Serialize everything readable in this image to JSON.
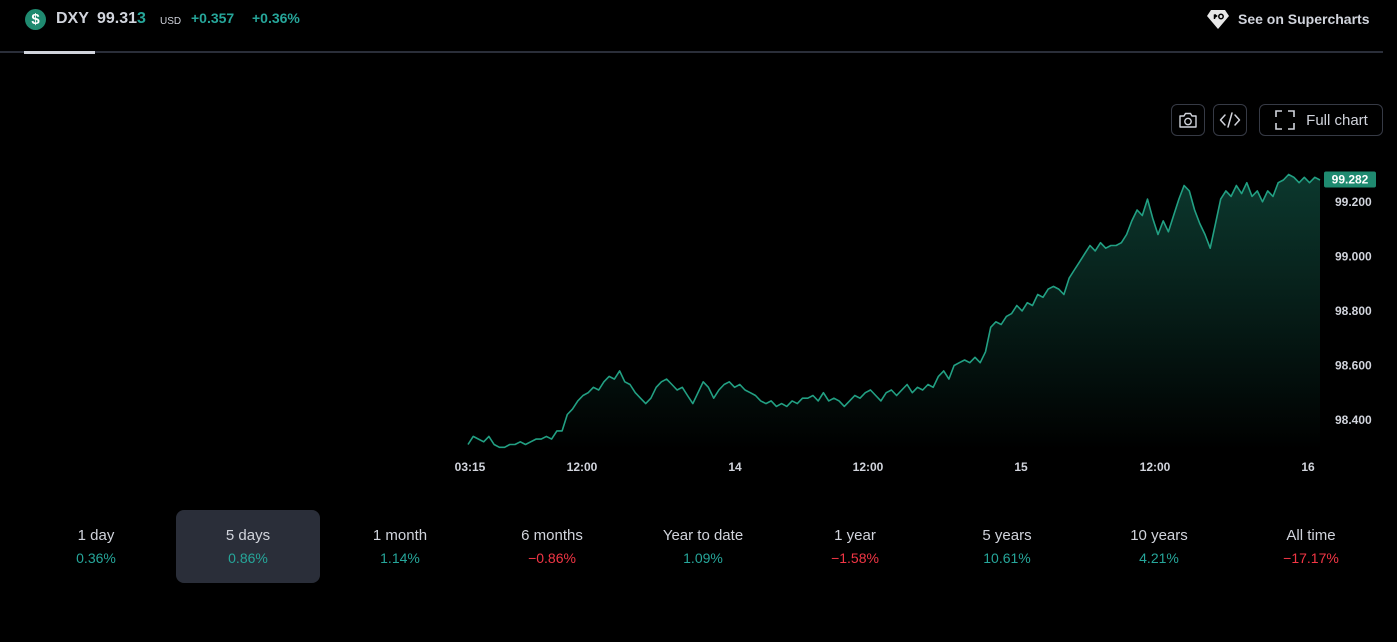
{
  "header": {
    "symbol_icon": "dollar-icon",
    "symbol": "DXY",
    "price_main": "99.31",
    "price_last_digit": "3",
    "currency": "USD",
    "change": "+0.357",
    "change_percent": "+0.36%",
    "supercharts_label": "See on Supercharts"
  },
  "toolbar": {
    "snapshot_icon": "camera-icon",
    "embed_icon": "code-icon",
    "fullscreen_icon": "expand-icon",
    "full_chart_label": "Full chart"
  },
  "colors": {
    "accent": "#26a69a",
    "negative": "#f23645",
    "background": "#000000",
    "line": "#22a083"
  },
  "chart_data": {
    "type": "area",
    "x_ticks": [
      "03:15",
      "12:00",
      "14",
      "12:00",
      "15",
      "12:00",
      "16"
    ],
    "y_ticks": [
      "99.200",
      "99.000",
      "98.800",
      "98.600",
      "98.400"
    ],
    "ylim": [
      98.29,
      99.39
    ],
    "last_value_label": "99.282",
    "series": [
      {
        "values": [
          98.31,
          98.34,
          98.33,
          98.32,
          98.34,
          98.31,
          98.3,
          98.3,
          98.31,
          98.31,
          98.32,
          98.31,
          98.32,
          98.33,
          98.33,
          98.34,
          98.33,
          98.36,
          98.36,
          98.42,
          98.44,
          98.47,
          98.49,
          98.5,
          98.52,
          98.51,
          98.54,
          98.56,
          98.55,
          98.58,
          98.54,
          98.53,
          98.5,
          98.48,
          98.46,
          98.48,
          98.52,
          98.54,
          98.55,
          98.53,
          98.51,
          98.52,
          98.49,
          98.46,
          98.5,
          98.54,
          98.52,
          98.48,
          98.51,
          98.53,
          98.54,
          98.52,
          98.53,
          98.51,
          98.5,
          98.49,
          98.47,
          98.46,
          98.47,
          98.45,
          98.46,
          98.45,
          98.47,
          98.46,
          98.48,
          98.48,
          98.49,
          98.47,
          98.5,
          98.47,
          98.48,
          98.47,
          98.45,
          98.47,
          98.49,
          98.48,
          98.5,
          98.51,
          98.49,
          98.47,
          98.5,
          98.51,
          98.49,
          98.51,
          98.53,
          98.5,
          98.52,
          98.51,
          98.53,
          98.52,
          98.56,
          98.58,
          98.55,
          98.6,
          98.61,
          98.62,
          98.61,
          98.63,
          98.61,
          98.65,
          98.74,
          98.76,
          98.75,
          98.78,
          98.79,
          98.82,
          98.8,
          98.83,
          98.82,
          98.86,
          98.85,
          98.88,
          98.89,
          98.88,
          98.86,
          98.92,
          98.95,
          98.98,
          99.01,
          99.04,
          99.02,
          99.05,
          99.03,
          99.04,
          99.04,
          99.05,
          99.08,
          99.13,
          99.17,
          99.15,
          99.21,
          99.14,
          99.08,
          99.13,
          99.09,
          99.15,
          99.21,
          99.26,
          99.24,
          99.17,
          99.12,
          99.08,
          99.03,
          99.12,
          99.21,
          99.24,
          99.22,
          99.26,
          99.23,
          99.27,
          99.22,
          99.24,
          99.2,
          99.24,
          99.22,
          99.27,
          99.28,
          99.3,
          99.29,
          99.27,
          99.29,
          99.27,
          99.29,
          99.28
        ]
      }
    ]
  },
  "periods": [
    {
      "label": "1 day",
      "value": "0.36%",
      "sign": "pos"
    },
    {
      "label": "5 days",
      "value": "0.86%",
      "sign": "pos"
    },
    {
      "label": "1 month",
      "value": "1.14%",
      "sign": "pos"
    },
    {
      "label": "6 months",
      "value": "−0.86%",
      "sign": "neg"
    },
    {
      "label": "Year to date",
      "value": "1.09%",
      "sign": "pos"
    },
    {
      "label": "1 year",
      "value": "−1.58%",
      "sign": "neg"
    },
    {
      "label": "5 years",
      "value": "10.61%",
      "sign": "pos"
    },
    {
      "label": "10 years",
      "value": "4.21%",
      "sign": "pos"
    },
    {
      "label": "All time",
      "value": "−17.17%",
      "sign": "neg"
    }
  ],
  "active_period": "5 days"
}
